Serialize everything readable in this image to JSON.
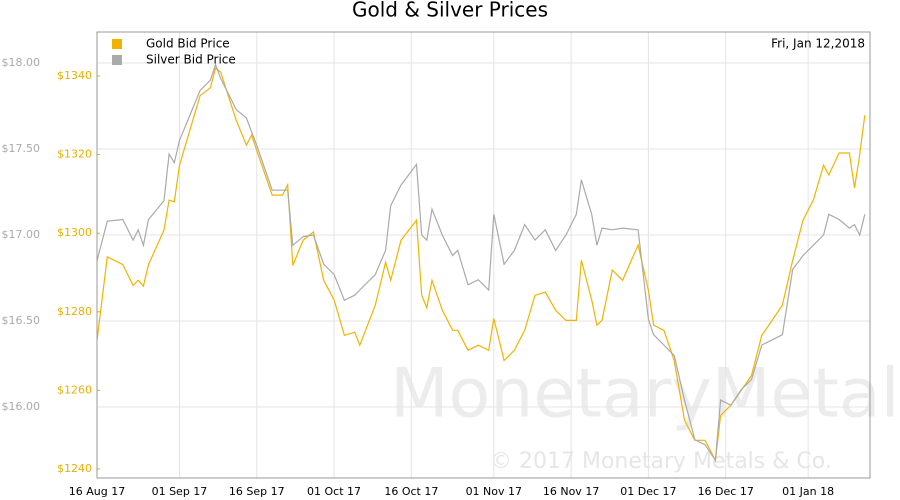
{
  "chart_data": {
    "type": "line",
    "title": "Gold & Silver Prices",
    "annotation": "Fri, Jan 12,2018",
    "watermark": "MonetaryMetals",
    "copyright": "© 2017 Monetary Metals & Co.",
    "legend": "top-left",
    "grid": true,
    "xlim": [
      "2017-08-16",
      "2018-01-13"
    ],
    "xticks": [
      {
        "value": "2017-08-16",
        "label": "16 Aug 17"
      },
      {
        "value": "2017-09-01",
        "label": "01 Sep 17"
      },
      {
        "value": "2017-09-16",
        "label": "16 Sep 17"
      },
      {
        "value": "2017-10-01",
        "label": "01 Oct 17"
      },
      {
        "value": "2017-10-16",
        "label": "16 Oct 17"
      },
      {
        "value": "2017-11-01",
        "label": "01 Nov 17"
      },
      {
        "value": "2017-11-16",
        "label": "16 Nov 17"
      },
      {
        "value": "2017-12-01",
        "label": "01 Dec 17"
      },
      {
        "value": "2017-12-16",
        "label": "16 Dec 17"
      },
      {
        "value": "2018-01-01",
        "label": "01 Jan 18"
      }
    ],
    "ylim": [
      15.587,
      18.18
    ],
    "yticks": [
      {
        "value": 16,
        "label": "$16.00"
      },
      {
        "value": 16.5,
        "label": "$16.50"
      },
      {
        "value": 17,
        "label": "$17.00"
      },
      {
        "value": 17.5,
        "label": "$17.50"
      },
      {
        "value": 18,
        "label": "$18.00"
      }
    ],
    "y2lim": [
      1237.7,
      1351.2
    ],
    "y2ticks": [
      {
        "value": 1240,
        "label": "$1240"
      },
      {
        "value": 1260,
        "label": "$1260"
      },
      {
        "value": 1280,
        "label": "$1280"
      },
      {
        "value": 1300,
        "label": "$1300"
      },
      {
        "value": 1320,
        "label": "$1320"
      },
      {
        "value": 1340,
        "label": "$1340"
      }
    ],
    "y2color": "#e8b000",
    "ycolor": "#aaaaaa",
    "x": [
      "2017-08-16",
      "2017-08-18",
      "2017-08-21",
      "2017-08-23",
      "2017-08-24",
      "2017-08-25",
      "2017-08-26",
      "2017-08-29",
      "2017-08-30",
      "2017-08-31",
      "2017-09-01",
      "2017-09-05",
      "2017-09-07",
      "2017-09-08",
      "2017-09-09",
      "2017-09-12",
      "2017-09-14",
      "2017-09-15",
      "2017-09-16",
      "2017-09-19",
      "2017-09-21",
      "2017-09-22",
      "2017-09-23",
      "2017-09-25",
      "2017-09-27",
      "2017-09-29",
      "2017-10-01",
      "2017-10-03",
      "2017-10-05",
      "2017-10-06",
      "2017-10-09",
      "2017-10-11",
      "2017-10-12",
      "2017-10-14",
      "2017-10-17",
      "2017-10-18",
      "2017-10-19",
      "2017-10-20",
      "2017-10-22",
      "2017-10-24",
      "2017-10-25",
      "2017-10-27",
      "2017-10-29",
      "2017-10-31",
      "2017-11-01",
      "2017-11-03",
      "2017-11-05",
      "2017-11-07",
      "2017-11-09",
      "2017-11-11",
      "2017-11-13",
      "2017-11-15",
      "2017-11-17",
      "2017-11-18",
      "2017-11-20",
      "2017-11-21",
      "2017-11-22",
      "2017-11-24",
      "2017-11-26",
      "2017-11-29",
      "2017-12-01",
      "2017-12-02",
      "2017-12-04",
      "2017-12-06",
      "2017-12-08",
      "2017-12-10",
      "2017-12-12",
      "2017-12-14",
      "2017-12-15",
      "2017-12-17",
      "2017-12-19",
      "2017-12-21",
      "2017-12-23",
      "2017-12-25",
      "2017-12-27",
      "2017-12-29",
      "2017-12-31",
      "2018-01-02",
      "2018-01-04",
      "2018-01-05",
      "2018-01-07",
      "2018-01-09",
      "2018-01-10",
      "2018-01-11",
      "2018-01-12"
    ],
    "series": [
      {
        "name": "Gold Bid Price",
        "color": "#f0b400",
        "axis": "y2",
        "values": [
          1272.7,
          1294,
          1292,
          1286.7,
          1288,
          1286.5,
          1292,
          1300.8,
          1308.4,
          1308,
          1317.3,
          1335,
          1337,
          1342,
          1341,
          1328.8,
          1322.4,
          1325,
          1321,
          1309.7,
          1309.7,
          1312.3,
          1291.8,
          1298.2,
          1300.3,
          1288,
          1283,
          1274,
          1274.8,
          1271.5,
          1281.7,
          1292.6,
          1288,
          1298.2,
          1303.3,
          1284.2,
          1281,
          1288,
          1280.4,
          1275.3,
          1275.3,
          1270.2,
          1271.5,
          1270.2,
          1278.3,
          1267.6,
          1270.2,
          1275.3,
          1284.2,
          1285,
          1280.4,
          1277.8,
          1277.8,
          1293.1,
          1283,
          1276.6,
          1277.8,
          1290.6,
          1288,
          1297,
          1285.5,
          1276.6,
          1275.3,
          1267.6,
          1252.4,
          1247.3,
          1247.3,
          1242.2,
          1253.6,
          1256.2,
          1260,
          1263.8,
          1274,
          1277.8,
          1281.7,
          1293.1,
          1303.3,
          1308.4,
          1317.3,
          1314.8,
          1320.4,
          1320.4,
          1311.5,
          1320,
          1330
        ]
      },
      {
        "name": "Silver Bid Price",
        "color": "#aaaaaa",
        "values": [
          16.85,
          17.08,
          17.09,
          16.97,
          17.03,
          16.94,
          17.09,
          17.2,
          17.47,
          17.42,
          17.55,
          17.84,
          17.9,
          17.99,
          17.91,
          17.73,
          17.68,
          17.6,
          17.52,
          17.26,
          17.26,
          17.26,
          16.94,
          16.99,
          17,
          16.83,
          16.77,
          16.62,
          16.65,
          16.68,
          16.77,
          16.91,
          17.17,
          17.29,
          17.41,
          17,
          16.97,
          17.15,
          17,
          16.88,
          16.91,
          16.71,
          16.74,
          16.68,
          17.12,
          16.83,
          16.91,
          17.06,
          16.97,
          17.03,
          16.91,
          17,
          17.12,
          17.32,
          17.12,
          16.94,
          17.04,
          17.03,
          17.04,
          17.03,
          16.51,
          16.42,
          16.36,
          16.3,
          16.04,
          15.81,
          15.78,
          15.69,
          16.04,
          16.01,
          16.1,
          16.16,
          16.36,
          16.39,
          16.42,
          16.8,
          16.88,
          16.94,
          17,
          17.12,
          17.09,
          17.04,
          17.06,
          17,
          17.12
        ]
      }
    ]
  }
}
